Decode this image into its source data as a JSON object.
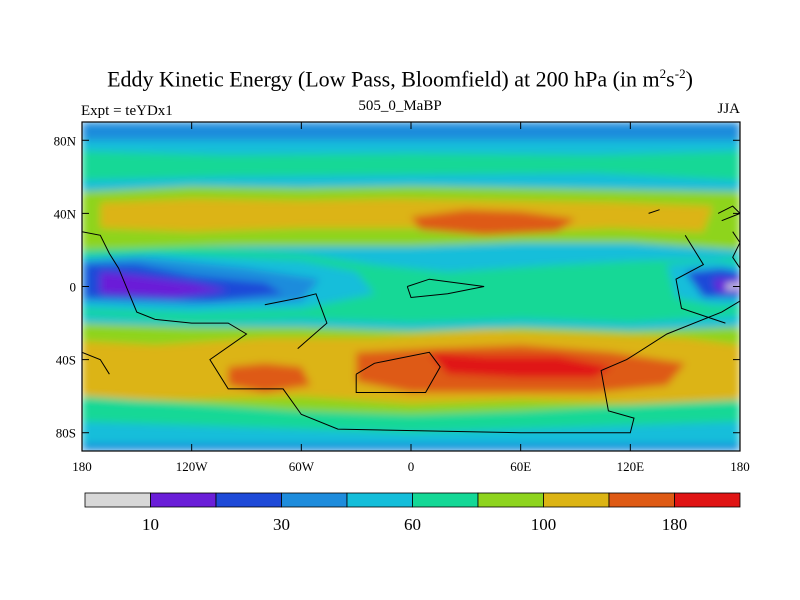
{
  "header": {
    "title_main": "Eddy Kinetic Energy (Low Pass, Bloomfield) at 200 hPa (in m",
    "title_sup1": "2",
    "title_mid": "s",
    "title_sup2": "-2",
    "title_end": ")",
    "left_label": "Expt = teYDx1",
    "center_label": "505_0_MaBP",
    "right_label": "JJA"
  },
  "chart_data": {
    "type": "contour-map",
    "variable": "Eddy Kinetic Energy (Low Pass, Bloomfield)",
    "level": "200 hPa",
    "units": "m2 s-2",
    "season": "JJA",
    "x_ticks": [
      "180",
      "120W",
      "60W",
      "0",
      "60E",
      "120E",
      "180"
    ],
    "x_tick_lons": [
      -180,
      -120,
      -60,
      0,
      60,
      120,
      180
    ],
    "y_ticks": [
      "80N",
      "40N",
      "0",
      "40S",
      "80S"
    ],
    "y_tick_lats": [
      80,
      40,
      0,
      -40,
      -80
    ],
    "xlim": [
      -180,
      180
    ],
    "ylim": [
      -90,
      90
    ],
    "levels": [
      10,
      20,
      30,
      45,
      60,
      80,
      100,
      120,
      180,
      210
    ],
    "colorbar_labels": [
      {
        "value": "10",
        "boundary": 1
      },
      {
        "value": "30",
        "boundary": 3
      },
      {
        "value": "60",
        "boundary": 5
      },
      {
        "value": "100",
        "boundary": 7
      },
      {
        "value": "180",
        "boundary": 9
      }
    ],
    "colors": [
      "#d8d8d8",
      "#6a1ed8",
      "#1e4ad8",
      "#1e8cdc",
      "#14beda",
      "#14d896",
      "#8ed41e",
      "#dcb414",
      "#de5a14",
      "#e01414"
    ]
  }
}
